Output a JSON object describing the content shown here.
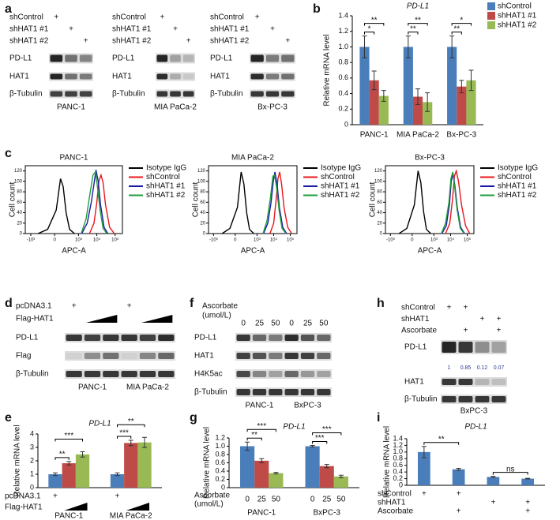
{
  "panel_labels": [
    "a",
    "b",
    "c",
    "d",
    "e",
    "f",
    "g",
    "h",
    "i"
  ],
  "blots": {
    "a": [
      {
        "cell": "PANC-1",
        "conditions": [
          {
            "label": "shControl",
            "signs": [
              "+",
              null,
              null
            ]
          },
          {
            "label": "shHAT1 #1",
            "signs": [
              null,
              "+",
              null
            ]
          },
          {
            "label": "shHAT1 #2",
            "signs": [
              null,
              null,
              "+"
            ]
          }
        ],
        "rows": [
          "PD-L1",
          "HAT1",
          "β-Tubulin"
        ]
      },
      {
        "cell": "MIA PaCa-2",
        "conditions": [
          {
            "label": "shControl",
            "signs": [
              "+",
              null,
              null
            ]
          },
          {
            "label": "shHAT1 #1",
            "signs": [
              null,
              "+",
              null
            ]
          },
          {
            "label": "shHAT1 #2",
            "signs": [
              null,
              null,
              "+"
            ]
          }
        ],
        "rows": [
          "PD-L1",
          "HAT1",
          "β-Tubulin"
        ]
      },
      {
        "cell": "Bx-PC-3",
        "conditions": [
          {
            "label": "shControl",
            "signs": [
              "+",
              null,
              null
            ]
          },
          {
            "label": "shHAT1 #1",
            "signs": [
              null,
              "+",
              null
            ]
          },
          {
            "label": "shHAT1 #2",
            "signs": [
              null,
              null,
              "+"
            ]
          }
        ],
        "rows": [
          "PD-L1",
          "HAT1",
          "β-Tubulin"
        ]
      }
    ],
    "d": {
      "conditions": [
        {
          "label": "pcDNA3.1",
          "signs": [
            "+",
            null,
            null,
            "+",
            null,
            null
          ]
        },
        {
          "label": "Flag-HAT1"
        }
      ],
      "rows": [
        "PD-L1",
        "Flag",
        "β-Tubulin"
      ],
      "cells": [
        "PANC-1",
        "MIA PaCa-2"
      ]
    },
    "f": {
      "treatment": "Ascorbate",
      "unit": "(umol/L)",
      "doses": [
        0,
        25,
        50,
        0,
        25,
        50
      ],
      "rows": [
        "PD-L1",
        "HAT1",
        "H4K5ac",
        "β-Tubulin"
      ],
      "cells": [
        "PANC-1",
        "BxPC-3"
      ]
    },
    "h": {
      "conditions": [
        {
          "label": "shControl",
          "signs": [
            "+",
            "+",
            null,
            null
          ]
        },
        {
          "label": "shHAT1",
          "signs": [
            null,
            null,
            "+",
            "+"
          ]
        },
        {
          "label": "Ascorbate",
          "signs": [
            null,
            "+",
            null,
            "+"
          ]
        }
      ],
      "rows": [
        "PD-L1",
        "HAT1",
        "β-Tubulin"
      ],
      "quant": [
        "1",
        "0.85",
        "0.12",
        "0.07"
      ],
      "cell": "BxPC-3"
    }
  },
  "chart_data": [
    {
      "type": "bar",
      "title": "PD-L1",
      "ylabel": "Relative mRNA level",
      "categories": [
        "PANC-1",
        "MIA PaCa-2",
        "Bx-PC-3"
      ],
      "series": [
        {
          "name": "shControl",
          "color": "#4a7ebb",
          "values": [
            1.0,
            1.0,
            1.0
          ],
          "errors": [
            0.14,
            0.14,
            0.14
          ]
        },
        {
          "name": "shHAT1 #1",
          "color": "#be4b48",
          "values": [
            0.57,
            0.36,
            0.49
          ],
          "errors": [
            0.12,
            0.1,
            0.08
          ]
        },
        {
          "name": "shHAT1 #2",
          "color": "#98b954",
          "values": [
            0.37,
            0.29,
            0.57
          ],
          "errors": [
            0.07,
            0.12,
            0.13
          ]
        }
      ],
      "ylim": [
        0,
        1.4
      ],
      "yticks": [
        0,
        0.2,
        0.4,
        0.6,
        0.8,
        {
          "value": 1,
          "label": "1.0"
        },
        1.2,
        1.4
      ],
      "annotations": [
        "*",
        "**",
        "**",
        "**",
        "**",
        "*"
      ],
      "legend": "right"
    },
    {
      "type": "line",
      "title": "PANC-1",
      "xlabel": "APC-A",
      "ylabel": "Cell count",
      "xscale": "biexponential",
      "xlim": [
        -2000,
        250000
      ],
      "xticks": [
        {
          "value": -1000,
          "label": "-10³"
        },
        0,
        {
          "value": 1000,
          "label": "10³"
        },
        {
          "value": 10000,
          "label": "10⁴"
        },
        {
          "value": 100000,
          "label": "10⁵"
        }
      ],
      "ylim": [
        0,
        130
      ],
      "yticks": [
        0,
        20,
        40,
        60,
        80,
        100,
        120
      ],
      "legend": "right",
      "series": [
        {
          "name": "Isotype IgG",
          "color": "#000000",
          "x": [
            -400,
            -100,
            20,
            80,
            130,
            200,
            320,
            600
          ],
          "values": [
            0,
            8,
            45,
            105,
            90,
            40,
            8,
            0
          ]
        },
        {
          "name": "shControl",
          "color": "#e8161b",
          "x": [
            4000,
            7000,
            10000,
            13000,
            17000,
            22000,
            30000,
            50000,
            90000
          ],
          "values": [
            0,
            20,
            60,
            100,
            112,
            98,
            55,
            12,
            0
          ]
        },
        {
          "name": "shHAT1 #1",
          "color": "#1a1aa8",
          "x": [
            1500,
            3000,
            5000,
            7000,
            9000,
            12000,
            16000,
            25000,
            40000
          ],
          "values": [
            0,
            20,
            60,
            95,
            122,
            100,
            55,
            12,
            0
          ]
        },
        {
          "name": "shHAT1 #2",
          "color": "#1f9e3a",
          "x": [
            1400,
            2600,
            4200,
            6200,
            8500,
            11000,
            15000,
            22000,
            35000
          ],
          "values": [
            0,
            28,
            75,
            112,
            118,
            88,
            45,
            10,
            0
          ]
        }
      ]
    },
    {
      "type": "line",
      "title": "MIA PaCa-2",
      "xlabel": "APC-A",
      "ylabel": "Cell count",
      "xscale": "biexponential",
      "xlim": [
        -2000,
        250000
      ],
      "xticks": [
        {
          "value": -1000,
          "label": "-10³"
        },
        0,
        {
          "value": 1000,
          "label": "10³"
        },
        {
          "value": 10000,
          "label": "10⁴"
        },
        {
          "value": 100000,
          "label": "10⁵"
        }
      ],
      "ylim": [
        0,
        130
      ],
      "yticks": [
        0,
        20,
        40,
        60,
        80,
        100,
        120
      ],
      "legend": "right",
      "series": [
        {
          "name": "Isotype IgG",
          "color": "#000000",
          "x": [
            -300,
            -80,
            30,
            90,
            150,
            230,
            350,
            650
          ],
          "values": [
            0,
            10,
            50,
            118,
            95,
            40,
            8,
            0
          ]
        },
        {
          "name": "shControl",
          "color": "#e8161b",
          "x": [
            6000,
            10000,
            14000,
            18000,
            23000,
            30000,
            42000,
            70000,
            120000
          ],
          "values": [
            0,
            20,
            65,
            105,
            118,
            95,
            50,
            12,
            0
          ]
        },
        {
          "name": "shHAT1 #1",
          "color": "#1a1aa8",
          "x": [
            2500,
            4500,
            7000,
            9500,
            12000,
            16000,
            22000,
            35000,
            60000
          ],
          "values": [
            0,
            20,
            60,
            100,
            118,
            95,
            50,
            12,
            0
          ]
        },
        {
          "name": "shHAT1 #2",
          "color": "#1f9e3a",
          "x": [
            2300,
            4000,
            6500,
            9000,
            11500,
            15000,
            21000,
            32000,
            55000
          ],
          "values": [
            0,
            25,
            70,
            110,
            112,
            88,
            45,
            10,
            0
          ]
        }
      ]
    },
    {
      "type": "line",
      "title": "Bx-PC-3",
      "xlabel": "APC-A",
      "ylabel": "Cell count",
      "xscale": "biexponential",
      "xlim": [
        -2000,
        250000
      ],
      "xticks": [
        {
          "value": -1000,
          "label": "-10³"
        },
        0,
        {
          "value": 1000,
          "label": "10³"
        },
        {
          "value": 10000,
          "label": "10⁴"
        },
        {
          "value": 100000,
          "label": "10⁵"
        }
      ],
      "ylim": [
        0,
        130
      ],
      "yticks": [
        0,
        20,
        40,
        60,
        80,
        100,
        120
      ],
      "legend": "right",
      "series": [
        {
          "name": "Isotype IgG",
          "color": "#000000",
          "x": [
            -300,
            -80,
            30,
            90,
            150,
            230,
            350,
            650
          ],
          "values": [
            0,
            10,
            55,
            120,
            98,
            42,
            8,
            0
          ]
        },
        {
          "name": "shControl",
          "color": "#e8161b",
          "x": [
            5000,
            9000,
            13000,
            17000,
            22000,
            30000,
            45000,
            80000,
            140000
          ],
          "values": [
            0,
            20,
            65,
            110,
            120,
            100,
            55,
            15,
            0
          ]
        },
        {
          "name": "shHAT1 #1",
          "color": "#1a1aa8",
          "x": [
            3000,
            5500,
            8500,
            11000,
            14000,
            18000,
            25000,
            40000,
            70000
          ],
          "values": [
            0,
            15,
            55,
            100,
            115,
            92,
            50,
            12,
            0
          ]
        },
        {
          "name": "shHAT1 #2",
          "color": "#1f9e3a",
          "x": [
            2800,
            5000,
            8000,
            10500,
            13500,
            17500,
            24000,
            38000,
            65000
          ],
          "values": [
            0,
            20,
            60,
            105,
            118,
            90,
            48,
            10,
            0
          ]
        }
      ]
    },
    {
      "type": "bar",
      "title": "PD-L1",
      "ylabel": "Relative mRNA level",
      "categories": [
        "PANC-1",
        "MIA PaCa-2"
      ],
      "series": [
        {
          "color": "#4a7ebb",
          "values": [
            1.0,
            1.0
          ],
          "errors": [
            0.1,
            0.1
          ]
        },
        {
          "color": "#be4b48",
          "values": [
            1.82,
            3.33
          ],
          "errors": [
            0.13,
            0.2
          ]
        },
        {
          "color": "#98b954",
          "values": [
            2.48,
            3.37
          ],
          "errors": [
            0.2,
            0.38
          ]
        }
      ],
      "ylim": [
        0,
        4
      ],
      "yticks": [
        0,
        1,
        2,
        3,
        4
      ],
      "annotations": [
        "**",
        "***",
        "***",
        "**"
      ],
      "conditions": [
        {
          "label": "pcDNA3.1",
          "signs": [
            "+",
            null,
            null,
            "+",
            null,
            null
          ]
        },
        {
          "label": "Flag-HAT1"
        }
      ]
    },
    {
      "type": "bar",
      "title": "PD-L1",
      "ylabel": "Relative mRNA level",
      "categories": [
        "PANC-1",
        "BxPC-3"
      ],
      "series": [
        {
          "color": "#4a7ebb",
          "values": [
            1.0,
            1.0
          ],
          "errors": [
            0.1,
            0.02
          ]
        },
        {
          "color": "#be4b48",
          "values": [
            0.65,
            0.52
          ],
          "errors": [
            0.05,
            0.04
          ]
        },
        {
          "color": "#98b954",
          "values": [
            0.35,
            0.27
          ],
          "errors": [
            0.02,
            0.03
          ]
        }
      ],
      "ylim": [
        0,
        1.2
      ],
      "yticks": [
        0,
        0.2,
        0.4,
        0.6,
        0.8,
        {
          "value": 1,
          "label": "1.0"
        },
        1.2
      ],
      "annotations": [
        "**",
        "***",
        "***",
        "***"
      ],
      "treatment": "Ascorbate",
      "unit": "(umol/L)",
      "doses": [
        0,
        25,
        50,
        0,
        25,
        50
      ]
    },
    {
      "type": "bar",
      "title": "PD-L1",
      "ylabel": "Relative mRNA level",
      "series": [
        {
          "color": "#4a7ebb",
          "values": [
            1.0,
            0.48,
            0.25,
            0.2
          ],
          "errors": [
            0.17,
            0.03,
            0.02,
            0.01
          ]
        }
      ],
      "ylim": [
        0,
        1.4
      ],
      "yticks": [
        0,
        0.2,
        0.4,
        0.6,
        0.8,
        {
          "value": 1,
          "label": "1.0"
        },
        1.2,
        1.4
      ],
      "annotations": [
        "**",
        "ns"
      ],
      "conditions": [
        {
          "label": "shControl",
          "signs": [
            "+",
            "+",
            null,
            null
          ]
        },
        {
          "label": "shHAT1",
          "signs": [
            null,
            null,
            "+",
            "+"
          ]
        },
        {
          "label": "Ascorbate",
          "signs": [
            null,
            "+",
            null,
            "+"
          ]
        }
      ]
    }
  ]
}
